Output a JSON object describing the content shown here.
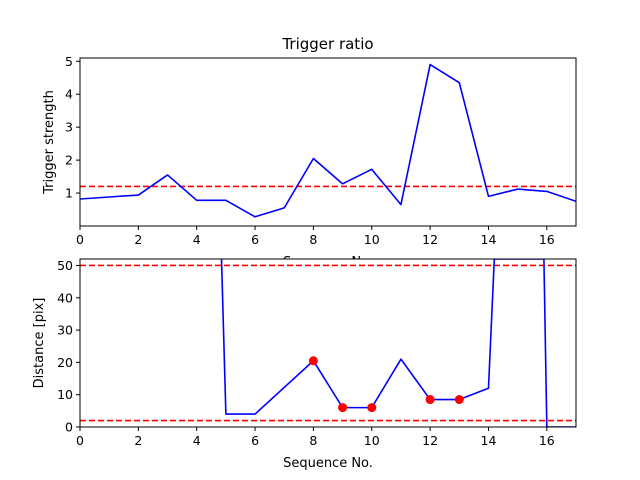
{
  "chart_data": [
    {
      "type": "line",
      "title": "Trigger ratio",
      "xlabel": "Sequence No.",
      "ylabel": "Trigger strength",
      "xlim": [
        0,
        17
      ],
      "ylim": [
        0,
        5.1
      ],
      "xticks": [
        "0",
        "2",
        "4",
        "6",
        "8",
        "10",
        "12",
        "14",
        "16"
      ],
      "yticks": [
        "1",
        "2",
        "3",
        "4",
        "5"
      ],
      "grid": false,
      "series": [
        {
          "color": "#0000ff",
          "x": [
            0,
            1,
            2,
            3,
            4,
            5,
            6,
            7,
            8,
            9,
            10,
            11,
            12,
            13,
            14,
            15,
            16,
            17
          ],
          "y": [
            0.82,
            0.88,
            0.94,
            1.55,
            0.78,
            0.78,
            0.28,
            0.55,
            2.05,
            1.28,
            1.72,
            0.65,
            4.9,
            4.35,
            0.9,
            1.12,
            1.05,
            0.75
          ]
        }
      ],
      "hlines": [
        {
          "y": 1.2,
          "color": "#ff0000",
          "style": "dashed"
        }
      ]
    },
    {
      "type": "line",
      "title": "",
      "xlabel": "Sequence No.",
      "ylabel": "Distance [pix]",
      "xlim": [
        0,
        17
      ],
      "ylim": [
        0,
        52
      ],
      "xticks": [
        "0",
        "2",
        "4",
        "6",
        "8",
        "10",
        "12",
        "14",
        "16"
      ],
      "yticks": [
        "0",
        "10",
        "20",
        "30",
        "40",
        "50"
      ],
      "grid": false,
      "series": [
        {
          "color": "#0000ff",
          "x": [
            4.85,
            5,
            6,
            8,
            9,
            10,
            11,
            12,
            13,
            14,
            14.2,
            15.9,
            16,
            17
          ],
          "y": [
            52,
            4,
            4,
            20.5,
            6,
            6,
            21,
            8.5,
            8.5,
            12,
            52,
            52,
            0,
            0
          ]
        }
      ],
      "markers": {
        "color": "#ff0000",
        "x": [
          8,
          9,
          10,
          12,
          13
        ],
        "y": [
          20.5,
          6,
          6,
          8.5,
          8.5
        ]
      },
      "hlines": [
        {
          "y": 50,
          "color": "#ff0000",
          "style": "dashed"
        },
        {
          "y": 2,
          "color": "#ff0000",
          "style": "dashed"
        }
      ]
    }
  ]
}
